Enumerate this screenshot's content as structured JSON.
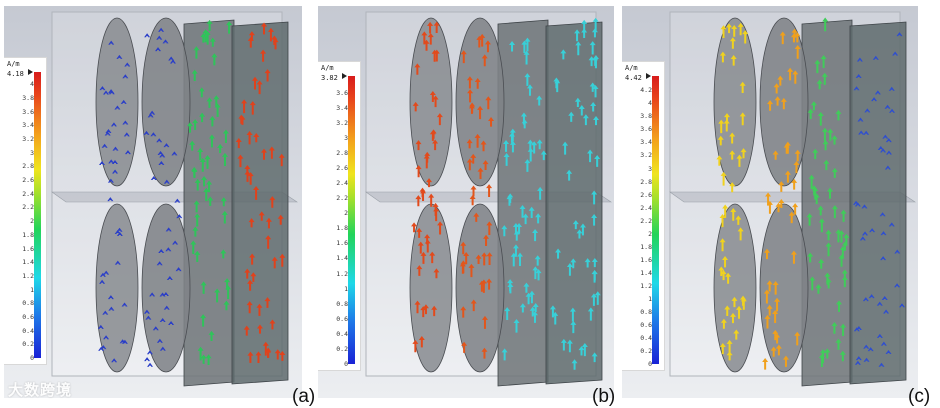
{
  "panels": [
    {
      "id": "a",
      "caption": "(a)",
      "legend": {
        "unit": "A/m",
        "max_label": "4.18",
        "ticks": [
          "4",
          "3.8",
          "3.6",
          "3.4",
          "3.2",
          "3",
          "2.8",
          "2.6",
          "2.4",
          "2.2",
          "2",
          "1.8",
          "1.6",
          "1.4",
          "1.2",
          "1",
          "0.8",
          "0.6",
          "0.4",
          "0.2",
          "0"
        ],
        "max_value": 4.18
      },
      "arrow_tint": [
        "#2a3ec8",
        "#2a3ec8",
        "#2fc45a",
        "#e0421c"
      ]
    },
    {
      "id": "b",
      "caption": "(b)",
      "legend": {
        "unit": "A/m",
        "max_label": "3.82",
        "ticks": [
          "3.6",
          "3.4",
          "3.2",
          "3",
          "2.8",
          "2.6",
          "2.4",
          "2.2",
          "2",
          "1.8",
          "1.6",
          "1.4",
          "1.2",
          "1",
          "0.8",
          "0.6",
          "0.4",
          "0.2",
          "0"
        ],
        "max_value": 3.82
      },
      "arrow_tint": [
        "#e24a1c",
        "#e2561c",
        "#38d0d8",
        "#38d0d8"
      ]
    },
    {
      "id": "c",
      "caption": "(c)",
      "legend": {
        "unit": "A/m",
        "max_label": "4.42",
        "ticks": [
          "4.2",
          "4",
          "3.8",
          "3.6",
          "3.4",
          "3.2",
          "3",
          "2.8",
          "2.6",
          "2.4",
          "2.2",
          "2",
          "1.8",
          "1.6",
          "1.4",
          "1.2",
          "1",
          "0.8",
          "0.6",
          "0.4",
          "0.2",
          "0"
        ],
        "max_value": 4.42
      },
      "arrow_tint": [
        "#f0d21e",
        "#f0a01c",
        "#40cc5a",
        "#2e4ed0"
      ]
    }
  ],
  "watermark": "大数跨境"
}
